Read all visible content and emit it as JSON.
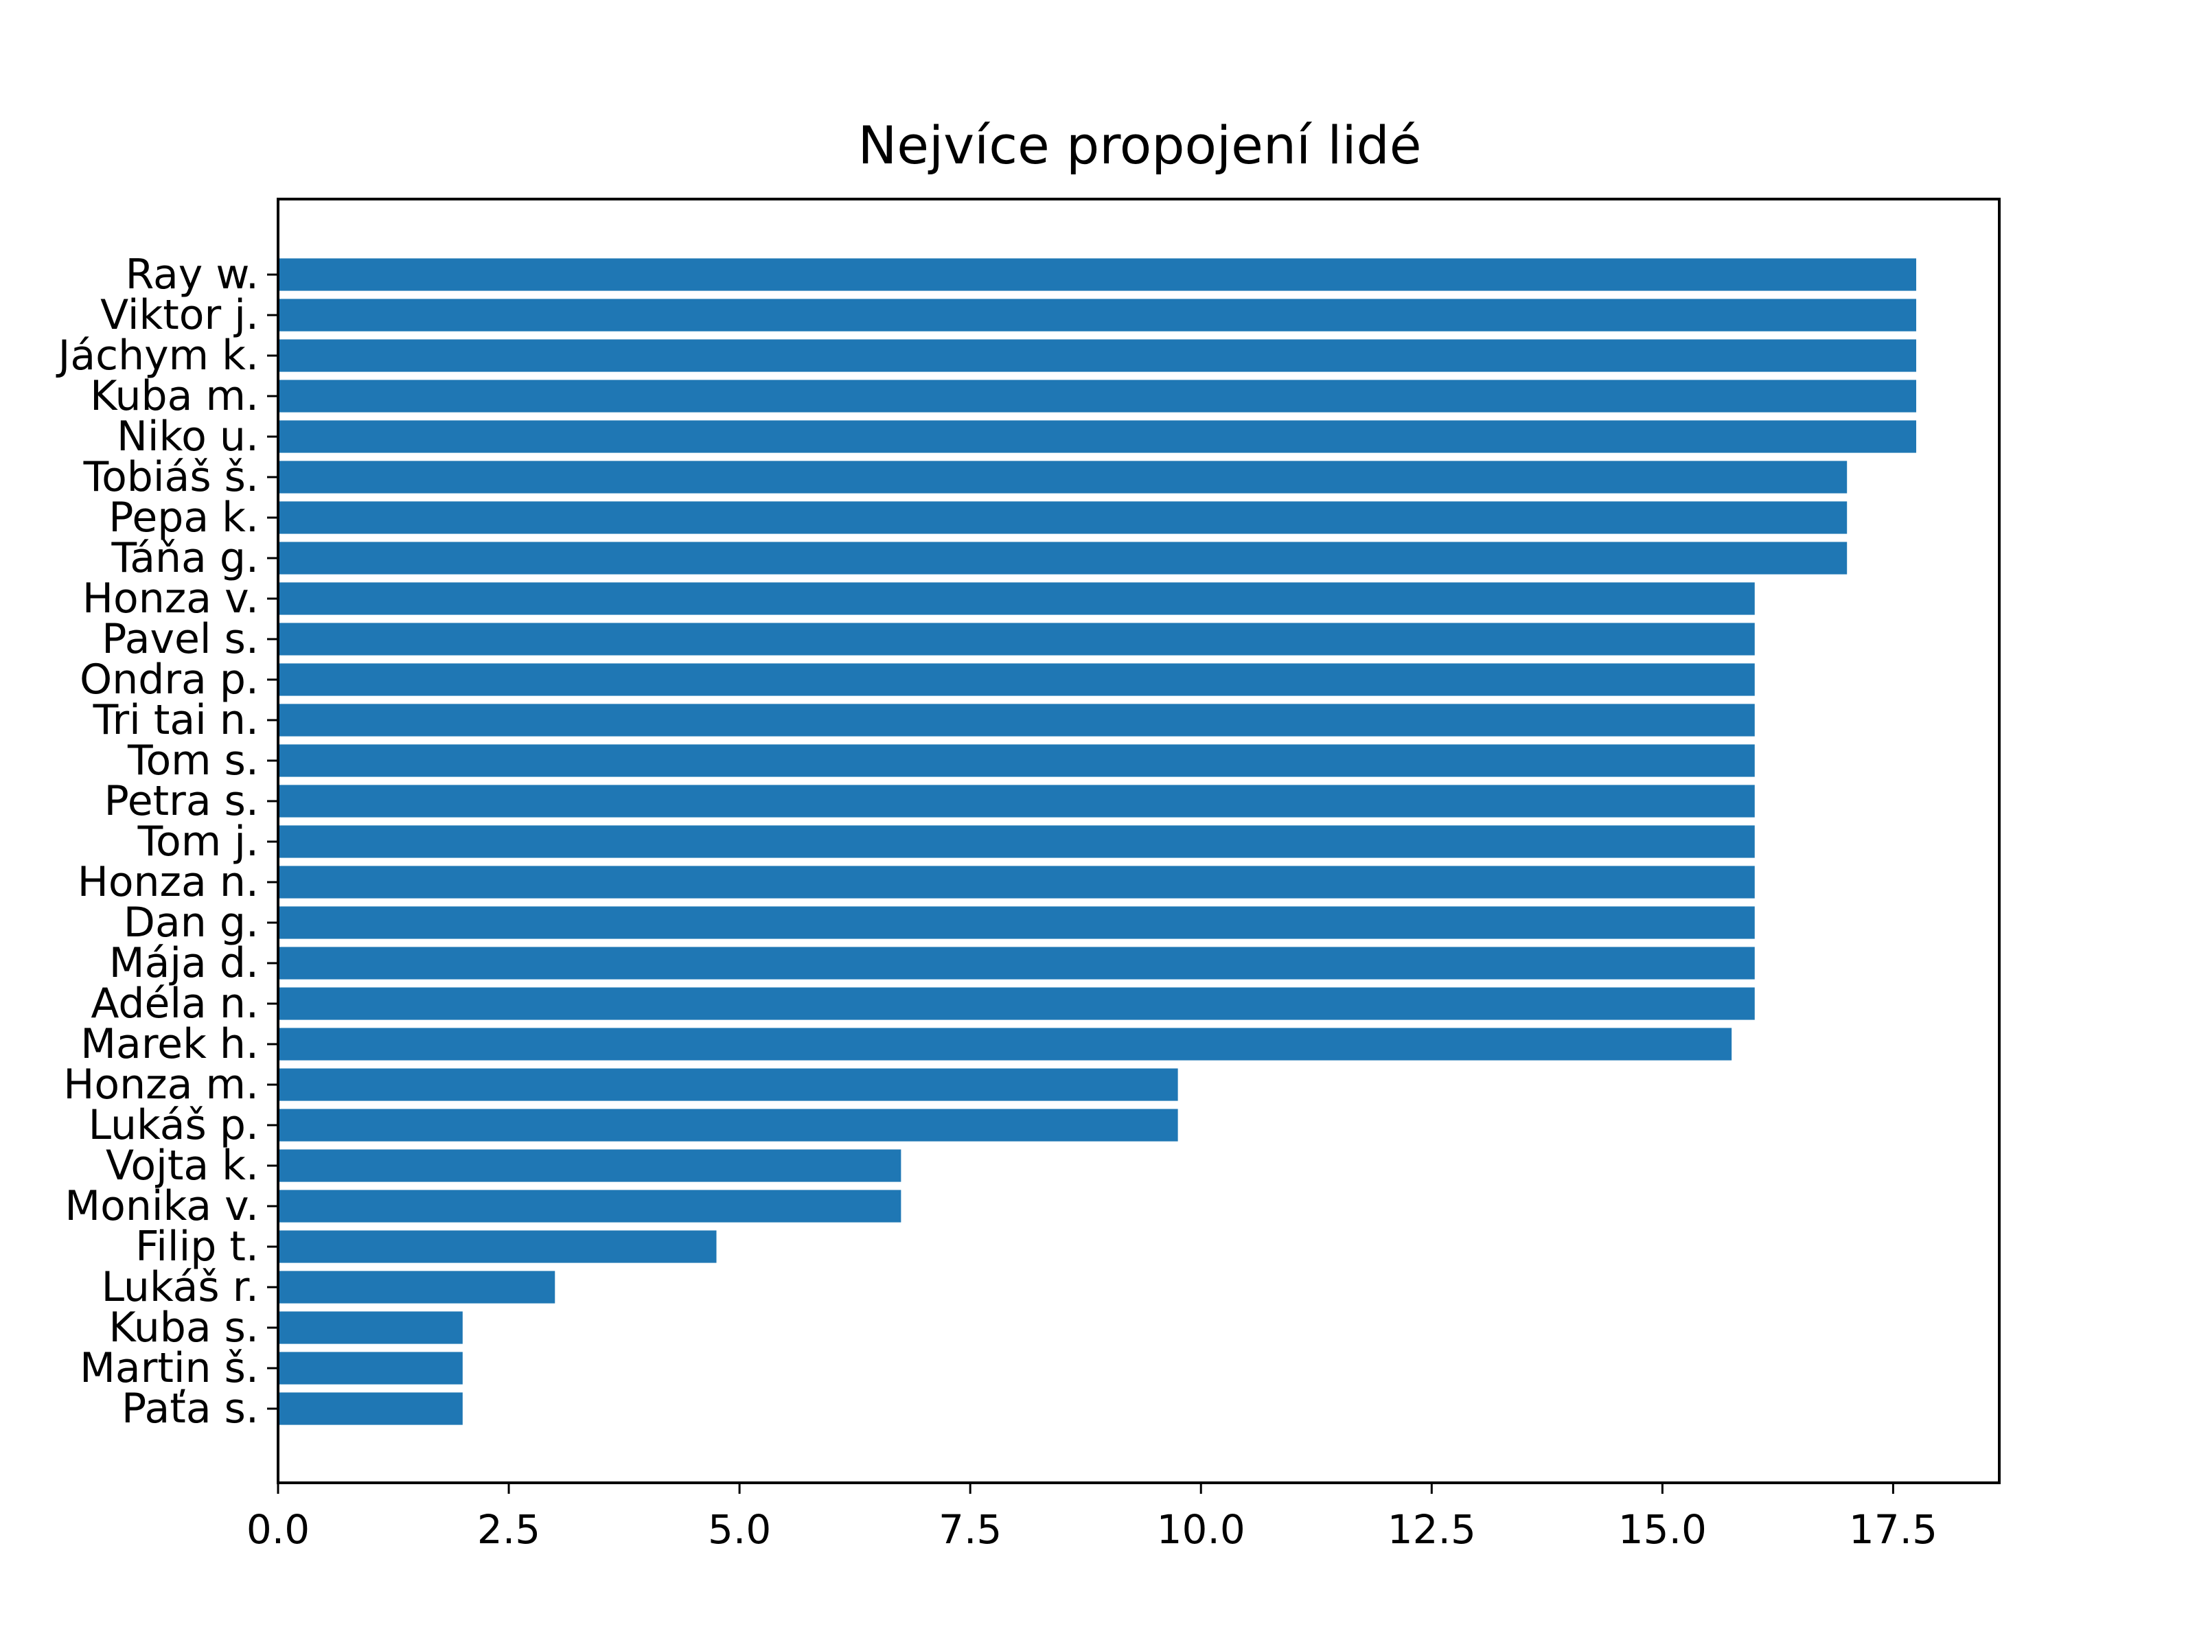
{
  "chart_data": {
    "type": "bar",
    "orientation": "horizontal",
    "title": "Nejvíce propojení lidé",
    "xlabel": "",
    "ylabel": "",
    "xlim": [
      0,
      18.65
    ],
    "xticks": [
      "0.0",
      "2.5",
      "5.0",
      "7.5",
      "10.0",
      "12.5",
      "15.0",
      "17.5"
    ],
    "xtick_values": [
      0,
      2.5,
      5,
      7.5,
      10,
      12.5,
      15,
      17.5
    ],
    "grid": false,
    "bar_color": "#1f77b4",
    "categories": [
      "Ray w.",
      "Viktor j.",
      "Jáchym k.",
      "Kuba m.",
      "Niko u.",
      "Tobiáš š.",
      "Pepa k.",
      "Táňa g.",
      "Honza v.",
      "Pavel s.",
      "Ondra p.",
      "Tri tai n.",
      "Tom s.",
      "Petra s.",
      "Tom j.",
      "Honza n.",
      "Dan g.",
      "Mája d.",
      "Adéla n.",
      "Marek h.",
      "Honza m.",
      "Lukáš p.",
      "Vojta k.",
      "Monika v.",
      "Filip t.",
      "Lukáš r.",
      "Kuba s.",
      "Martin š.",
      "Paťa s."
    ],
    "values": [
      17.75,
      17.75,
      17.75,
      17.75,
      17.75,
      17,
      17,
      17,
      16,
      16,
      16,
      16,
      16,
      16,
      16,
      16,
      16,
      16,
      16,
      15.75,
      9.75,
      9.75,
      6.75,
      6.75,
      4.75,
      3,
      2,
      2,
      2
    ]
  }
}
